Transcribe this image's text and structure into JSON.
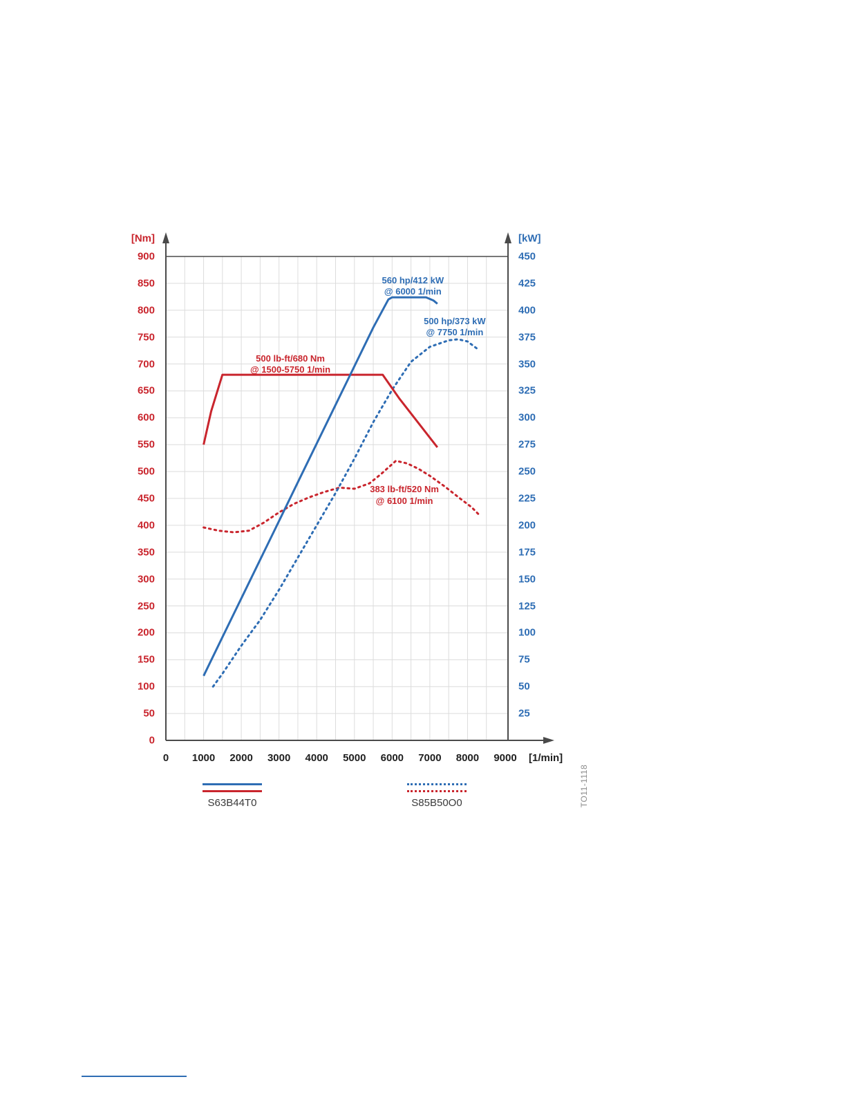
{
  "page": {
    "watermark": "TO11-1118"
  },
  "chart_data": {
    "type": "line",
    "title": "",
    "colors": {
      "torque_red": "#c9252d",
      "power_blue": "#2e6db4",
      "grid": "#dcdcdc",
      "axis": "#4a4a4a"
    },
    "x_axis": {
      "label": "[1/min]",
      "min": 0,
      "max": 9000,
      "tick_step": 1000,
      "ticks": [
        0,
        1000,
        2000,
        3000,
        4000,
        5000,
        6000,
        7000,
        8000,
        9000
      ]
    },
    "y_left": {
      "label": "[Nm]",
      "min": 0,
      "max": 900,
      "tick_step": 50,
      "color": "#c9252d",
      "ticks": [
        900,
        850,
        800,
        750,
        700,
        650,
        600,
        550,
        500,
        450,
        400,
        350,
        300,
        250,
        200,
        150,
        100,
        50,
        0
      ]
    },
    "y_right": {
      "label": "[kW]",
      "min": 0,
      "max": 450,
      "tick_step": 25,
      "color": "#2e6db4",
      "ticks": [
        450,
        425,
        400,
        375,
        350,
        325,
        300,
        275,
        250,
        225,
        200,
        175,
        150,
        125,
        100,
        75,
        50,
        25
      ]
    },
    "grid": true,
    "legend_position": "bottom",
    "series": [
      {
        "id": "s85-torque",
        "name": "S85B50O0 torque (Nm)",
        "engine": "S85B50O0",
        "axis": "Nm",
        "style": "dashed",
        "color": "#c9252d",
        "points": [
          [
            1000,
            396
          ],
          [
            1400,
            390
          ],
          [
            1800,
            387
          ],
          [
            2200,
            390
          ],
          [
            2600,
            405
          ],
          [
            3000,
            424
          ],
          [
            3400,
            440
          ],
          [
            3800,
            452
          ],
          [
            4200,
            462
          ],
          [
            4600,
            470
          ],
          [
            5000,
            468
          ],
          [
            5400,
            478
          ],
          [
            5700,
            495
          ],
          [
            6100,
            520
          ],
          [
            6400,
            515
          ],
          [
            6700,
            505
          ],
          [
            7000,
            492
          ],
          [
            7400,
            472
          ],
          [
            7800,
            450
          ],
          [
            8100,
            434
          ],
          [
            8300,
            420
          ]
        ]
      },
      {
        "id": "s85-power",
        "name": "S85B50O0 power (kW)",
        "engine": "S85B50O0",
        "axis": "kW",
        "style": "dashed",
        "color": "#2e6db4",
        "points": [
          [
            1250,
            50
          ],
          [
            1500,
            62
          ],
          [
            2000,
            88
          ],
          [
            2500,
            112
          ],
          [
            3000,
            140
          ],
          [
            3500,
            170
          ],
          [
            4000,
            200
          ],
          [
            4500,
            230
          ],
          [
            5000,
            262
          ],
          [
            5500,
            296
          ],
          [
            6000,
            326
          ],
          [
            6500,
            352
          ],
          [
            7000,
            366
          ],
          [
            7500,
            372
          ],
          [
            7750,
            373
          ],
          [
            8000,
            371
          ],
          [
            8300,
            363
          ]
        ]
      },
      {
        "id": "s63-torque",
        "name": "S63B44T0 torque (Nm)",
        "engine": "S63B44T0",
        "axis": "Nm",
        "style": "solid",
        "color": "#c9252d",
        "points": [
          [
            1000,
            550
          ],
          [
            1200,
            612
          ],
          [
            1500,
            680
          ],
          [
            5750,
            680
          ],
          [
            6200,
            635
          ],
          [
            6700,
            590
          ],
          [
            7200,
            545
          ]
        ]
      },
      {
        "id": "s63-power",
        "name": "S63B44T0 power (kW)",
        "engine": "S63B44T0",
        "axis": "kW",
        "style": "solid",
        "color": "#2e6db4",
        "points": [
          [
            1000,
            60
          ],
          [
            1500,
            96
          ],
          [
            2000,
            132
          ],
          [
            2500,
            168
          ],
          [
            3000,
            204
          ],
          [
            3500,
            240
          ],
          [
            4000,
            276
          ],
          [
            4500,
            312
          ],
          [
            5000,
            348
          ],
          [
            5500,
            384
          ],
          [
            5900,
            410
          ],
          [
            6000,
            412
          ],
          [
            6900,
            412
          ],
          [
            7100,
            409
          ],
          [
            7200,
            406
          ]
        ]
      }
    ],
    "annotations": [
      {
        "id": "annotation-s63-power-peak",
        "lines": [
          "560 hp/412 kW",
          "@ 6000 1/min"
        ],
        "color": "#2e6db4",
        "anchor_rpm": 6550,
        "anchor_nm": 845
      },
      {
        "id": "annotation-s85-power-peak",
        "lines": [
          "500 hp/373 kW",
          "@ 7750 1/min"
        ],
        "color": "#2e6db4",
        "anchor_rpm": 7660,
        "anchor_nm": 769
      },
      {
        "id": "annotation-s63-torque-peak",
        "lines": [
          "500 lb-ft/680 Nm",
          "@ 1500-5750 1/min"
        ],
        "color": "#c9252d",
        "anchor_rpm": 3300,
        "anchor_nm": 700
      },
      {
        "id": "annotation-s85-torque-peak",
        "lines": [
          "383 lb-ft/520 Nm",
          "@ 6100 1/min"
        ],
        "color": "#c9252d",
        "anchor_rpm": 6325,
        "anchor_nm": 456
      }
    ],
    "legend": [
      {
        "label": "S63B44T0",
        "style": "solid"
      },
      {
        "label": "S85B50O0",
        "style": "dashed"
      }
    ]
  }
}
